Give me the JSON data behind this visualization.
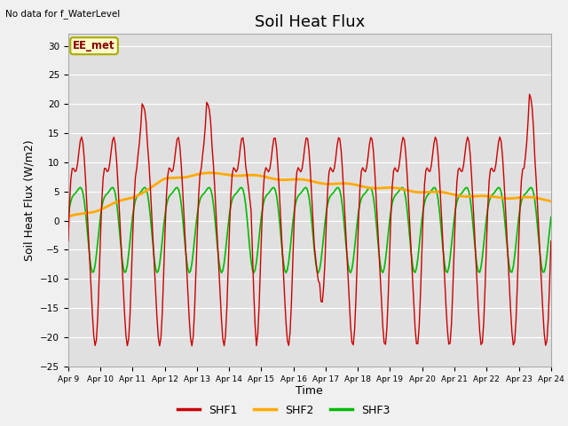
{
  "title": "Soil Heat Flux",
  "top_left_text": "No data for f_WaterLevel",
  "annotation_box": "EE_met",
  "ylabel": "Soil Heat Flux (W/m2)",
  "xlabel": "Time",
  "ylim": [
    -25,
    32
  ],
  "yticks": [
    -25,
    -20,
    -15,
    -10,
    -5,
    0,
    5,
    10,
    15,
    20,
    25,
    30
  ],
  "xtick_labels": [
    "Apr 9",
    "Apr 10",
    "Apr 11",
    "Apr 12",
    "Apr 13",
    "Apr 14",
    "Apr 15",
    "Apr 16",
    "Apr 17",
    "Apr 18",
    "Apr 19",
    "Apr 20",
    "Apr 21",
    "Apr 22",
    "Apr 23",
    "Apr 24"
  ],
  "shf1_color": "#cc0000",
  "shf2_color": "#ffaa00",
  "shf3_color": "#00bb00",
  "background_color": "#f0f0f0",
  "plot_bg_color": "#e0e0e0",
  "legend_labels": [
    "SHF1",
    "SHF2",
    "SHF3"
  ],
  "title_fontsize": 13,
  "axis_label_fontsize": 9,
  "annotation_box_color": "#ffffcc",
  "annotation_box_border": "#aaaa00",
  "n_days": 15,
  "n_points": 360
}
